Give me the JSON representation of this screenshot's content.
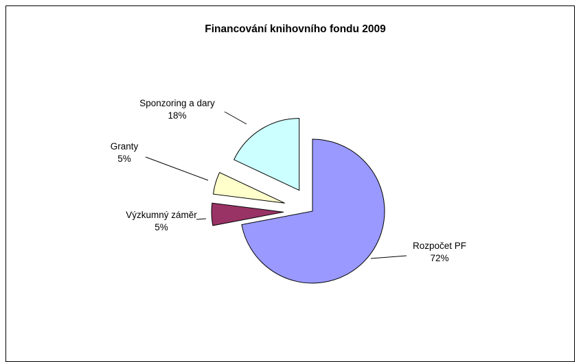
{
  "chart_data": {
    "type": "pie",
    "title": "Financování knihovního fondu 2009",
    "slices": [
      {
        "name": "Rozpočet PF",
        "value": 72,
        "label": "72%",
        "color": "#9999ff"
      },
      {
        "name": "Výzkumný záměr",
        "value": 5,
        "label": "5%",
        "color": "#993366"
      },
      {
        "name": "Granty",
        "value": 5,
        "label": "5%",
        "color": "#ffffcc"
      },
      {
        "name": "Sponzoring a dary",
        "value": 18,
        "label": "18%",
        "color": "#ccffff"
      }
    ],
    "legend": "none"
  }
}
